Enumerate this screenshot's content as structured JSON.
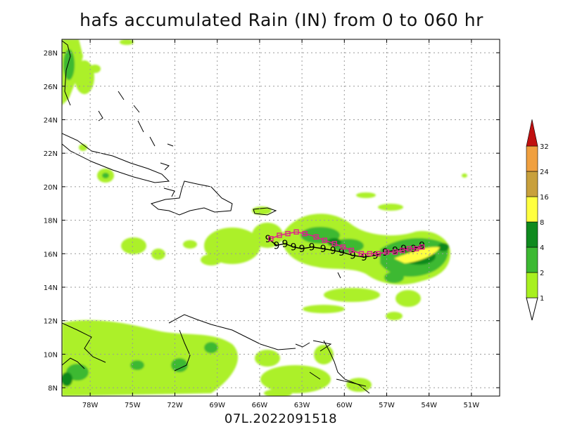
{
  "title": "hafs accumulated Rain (IN) from 0 to 060 hr",
  "subtitle": "07L.2022091518",
  "map": {
    "lon_range": [
      -80,
      -49
    ],
    "lat_range": [
      7.5,
      28.8
    ],
    "lon_ticks": [
      -78,
      -75,
      -72,
      -69,
      -66,
      -63,
      -60,
      -57,
      -54,
      -51
    ],
    "lon_labels": [
      "78W",
      "75W",
      "72W",
      "69W",
      "66W",
      "63W",
      "60W",
      "57W",
      "54W",
      "51W"
    ],
    "lat_ticks": [
      8,
      10,
      12,
      14,
      16,
      18,
      20,
      22,
      24,
      26,
      28
    ],
    "lat_labels": [
      "8N",
      "10N",
      "12N",
      "14N",
      "16N",
      "18N",
      "20N",
      "22N",
      "24N",
      "26N",
      "28N"
    ],
    "grid": true
  },
  "colorbar": {
    "labels": [
      "1",
      "2",
      "4",
      "8",
      "16",
      "24",
      "32"
    ],
    "colors": [
      "#a8f020",
      "#3cb932",
      "#0f8a1e",
      "#ffff40",
      "#c8a03c",
      "#f0a040",
      "#c01010"
    ]
  },
  "track_symbol": "9",
  "track_model": [
    [
      -65.4,
      16.9
    ],
    [
      -64.8,
      16.5
    ],
    [
      -64.2,
      16.6
    ],
    [
      -63.6,
      16.4
    ],
    [
      -63.0,
      16.3
    ],
    [
      -62.3,
      16.4
    ],
    [
      -61.5,
      16.3
    ],
    [
      -60.8,
      16.2
    ],
    [
      -60.2,
      16.1
    ],
    [
      -59.4,
      15.9
    ],
    [
      -58.6,
      15.8
    ],
    [
      -57.8,
      15.9
    ],
    [
      -57.1,
      16.1
    ],
    [
      -56.4,
      16.2
    ],
    [
      -55.8,
      16.3
    ],
    [
      -55.1,
      16.3
    ],
    [
      -54.5,
      16.5
    ]
  ],
  "track_obs": [
    [
      -65.2,
      16.9
    ],
    [
      -64.6,
      17.1
    ],
    [
      -64.0,
      17.2
    ],
    [
      -63.4,
      17.3
    ],
    [
      -62.8,
      17.2
    ],
    [
      -62.0,
      17.0
    ],
    [
      -61.4,
      16.8
    ],
    [
      -60.7,
      16.6
    ],
    [
      -60.1,
      16.4
    ],
    [
      -59.5,
      16.2
    ],
    [
      -58.8,
      16.0
    ],
    [
      -58.2,
      16.0
    ],
    [
      -57.6,
      16.0
    ],
    [
      -57.0,
      16.1
    ],
    [
      -56.4,
      16.1
    ],
    [
      -55.9,
      16.2
    ],
    [
      -55.4,
      16.3
    ],
    [
      -54.9,
      16.3
    ],
    [
      -54.5,
      16.4
    ]
  ]
}
